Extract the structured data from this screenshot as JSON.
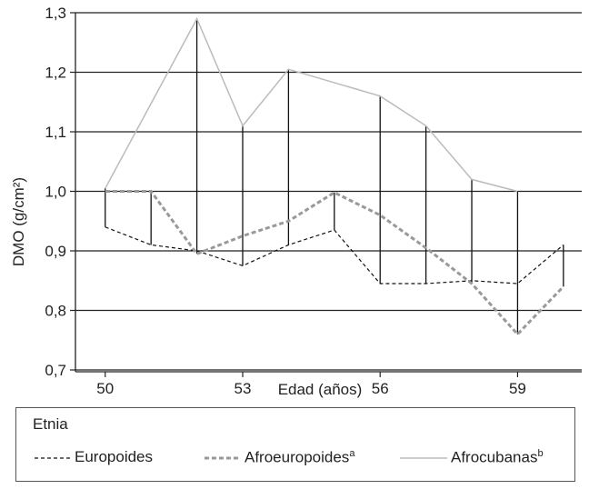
{
  "chart_data": {
    "type": "line",
    "xlabel": "Edad (años)",
    "ylabel": "DMO (g/cm²)",
    "x": [
      50,
      51,
      52,
      53,
      54,
      55,
      56,
      57,
      58,
      59,
      60
    ],
    "xticks": [
      50,
      53,
      56,
      59
    ],
    "xticks_label": [
      "50",
      "53",
      "56",
      "59"
    ],
    "yticks": [
      0.7,
      0.8,
      0.9,
      1.0,
      1.1,
      1.2,
      1.3
    ],
    "yticks_label": [
      "0,7",
      "0,8",
      "0,9",
      "1,0",
      "1,1",
      "1,2",
      "1,3"
    ],
    "xlim": [
      49.35,
      60.4
    ],
    "ylim": [
      0.7,
      1.3
    ],
    "grid": "horizontal",
    "series": [
      {
        "name": "Europoides",
        "style": "dashed-black",
        "color": "#111111",
        "values": [
          0.94,
          0.91,
          0.9,
          0.875,
          0.91,
          0.935,
          0.845,
          0.845,
          0.85,
          0.845,
          0.91
        ]
      },
      {
        "name": "Afroeuropoides",
        "superscript": "a",
        "style": "dashed-gray-thick",
        "color": "#999999",
        "values": [
          1.0,
          1.0,
          0.895,
          0.925,
          0.95,
          0.998,
          0.96,
          0.905,
          0.845,
          0.76,
          0.84
        ]
      },
      {
        "name": "Afrocubanas",
        "superscript": "b",
        "style": "solid-gray",
        "color": "#bbbbbb",
        "values": [
          1.005,
          null,
          1.29,
          1.11,
          1.205,
          null,
          1.16,
          1.11,
          1.02,
          1.0,
          null
        ]
      }
    ],
    "range_bars": [
      {
        "x": 50,
        "low": 0.94,
        "high": 1.005
      },
      {
        "x": 51,
        "low": 0.91,
        "high": 1.0
      },
      {
        "x": 52,
        "low": 0.895,
        "high": 1.29
      },
      {
        "x": 53,
        "low": 0.875,
        "high": 1.11
      },
      {
        "x": 54,
        "low": 0.91,
        "high": 1.205
      },
      {
        "x": 55,
        "low": 0.935,
        "high": 0.998
      },
      {
        "x": 56,
        "low": 0.845,
        "high": 1.16
      },
      {
        "x": 57,
        "low": 0.845,
        "high": 1.11
      },
      {
        "x": 58,
        "low": 0.845,
        "high": 1.02
      },
      {
        "x": 59,
        "low": 0.76,
        "high": 1.0
      },
      {
        "x": 60,
        "low": 0.84,
        "high": 0.91
      }
    ]
  },
  "legend": {
    "title": "Etnia",
    "items": [
      {
        "label": "Europoides",
        "sup": ""
      },
      {
        "label": "Afroeuropoides",
        "sup": "a"
      },
      {
        "label": "Afrocubanas",
        "sup": "b"
      }
    ]
  }
}
